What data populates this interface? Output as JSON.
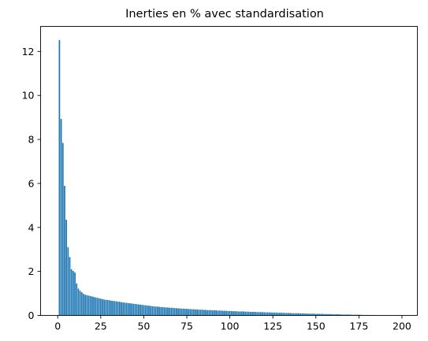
{
  "chart_data": {
    "type": "bar",
    "title": "Inerties en % avec standardisation",
    "xlabel": "",
    "ylabel": "",
    "xlim": [
      -9.95,
      208.95
    ],
    "ylim": [
      0,
      13.14
    ],
    "x_ticks": [
      0,
      25,
      50,
      75,
      100,
      125,
      150,
      175,
      200
    ],
    "y_ticks": [
      0,
      2,
      4,
      6,
      8,
      10,
      12
    ],
    "grid": false,
    "legend": "none",
    "bar_color": "#1f77b4",
    "series": [
      {
        "x_start": 1,
        "values": [
          12.52,
          8.93,
          7.84,
          5.89,
          4.35,
          3.1,
          2.65,
          2.1,
          2.02,
          1.95,
          1.45,
          1.22,
          1.12,
          1.05,
          0.98,
          0.94,
          0.92,
          0.9,
          0.88,
          0.86,
          0.84,
          0.82,
          0.8,
          0.78,
          0.76,
          0.74,
          0.72,
          0.71,
          0.7,
          0.69,
          0.67,
          0.66,
          0.65,
          0.64,
          0.63,
          0.62,
          0.6,
          0.59,
          0.58,
          0.57,
          0.56,
          0.55,
          0.54,
          0.53,
          0.52,
          0.51,
          0.5,
          0.49,
          0.48,
          0.47,
          0.46,
          0.45,
          0.44,
          0.43,
          0.42,
          0.41,
          0.4,
          0.4,
          0.39,
          0.38,
          0.38,
          0.37,
          0.36,
          0.36,
          0.35,
          0.35,
          0.34,
          0.33,
          0.33,
          0.32,
          0.32,
          0.31,
          0.31,
          0.3,
          0.3,
          0.29,
          0.29,
          0.28,
          0.28,
          0.27,
          0.27,
          0.26,
          0.26,
          0.26,
          0.25,
          0.25,
          0.24,
          0.24,
          0.24,
          0.23,
          0.23,
          0.23,
          0.22,
          0.22,
          0.22,
          0.21,
          0.21,
          0.21,
          0.2,
          0.2,
          0.2,
          0.19,
          0.19,
          0.19,
          0.18,
          0.18,
          0.18,
          0.18,
          0.17,
          0.17,
          0.17,
          0.16,
          0.16,
          0.16,
          0.16,
          0.15,
          0.15,
          0.15,
          0.15,
          0.14,
          0.14,
          0.14,
          0.14,
          0.13,
          0.13,
          0.13,
          0.13,
          0.12,
          0.12,
          0.12,
          0.12,
          0.11,
          0.11,
          0.11,
          0.11,
          0.1,
          0.1,
          0.1,
          0.1,
          0.1,
          0.09,
          0.09,
          0.09,
          0.09,
          0.08,
          0.08,
          0.08,
          0.08,
          0.08,
          0.07,
          0.07,
          0.07,
          0.07,
          0.07,
          0.06,
          0.06,
          0.06,
          0.06,
          0.06,
          0.05,
          0.05,
          0.05,
          0.05,
          0.05,
          0.04,
          0.04,
          0.04,
          0.04,
          0.04,
          0.04,
          0.03,
          0.03,
          0.03,
          0.03,
          0.03,
          0.03,
          0.02,
          0.02,
          0.02,
          0.02,
          0.02,
          0.02,
          0.02,
          0.01,
          0.01,
          0.01,
          0.01,
          0.01,
          0.01,
          0.01,
          0.01,
          0.005,
          0.005,
          0.005,
          0.005,
          0.005,
          0.003,
          0.003
        ]
      }
    ]
  }
}
